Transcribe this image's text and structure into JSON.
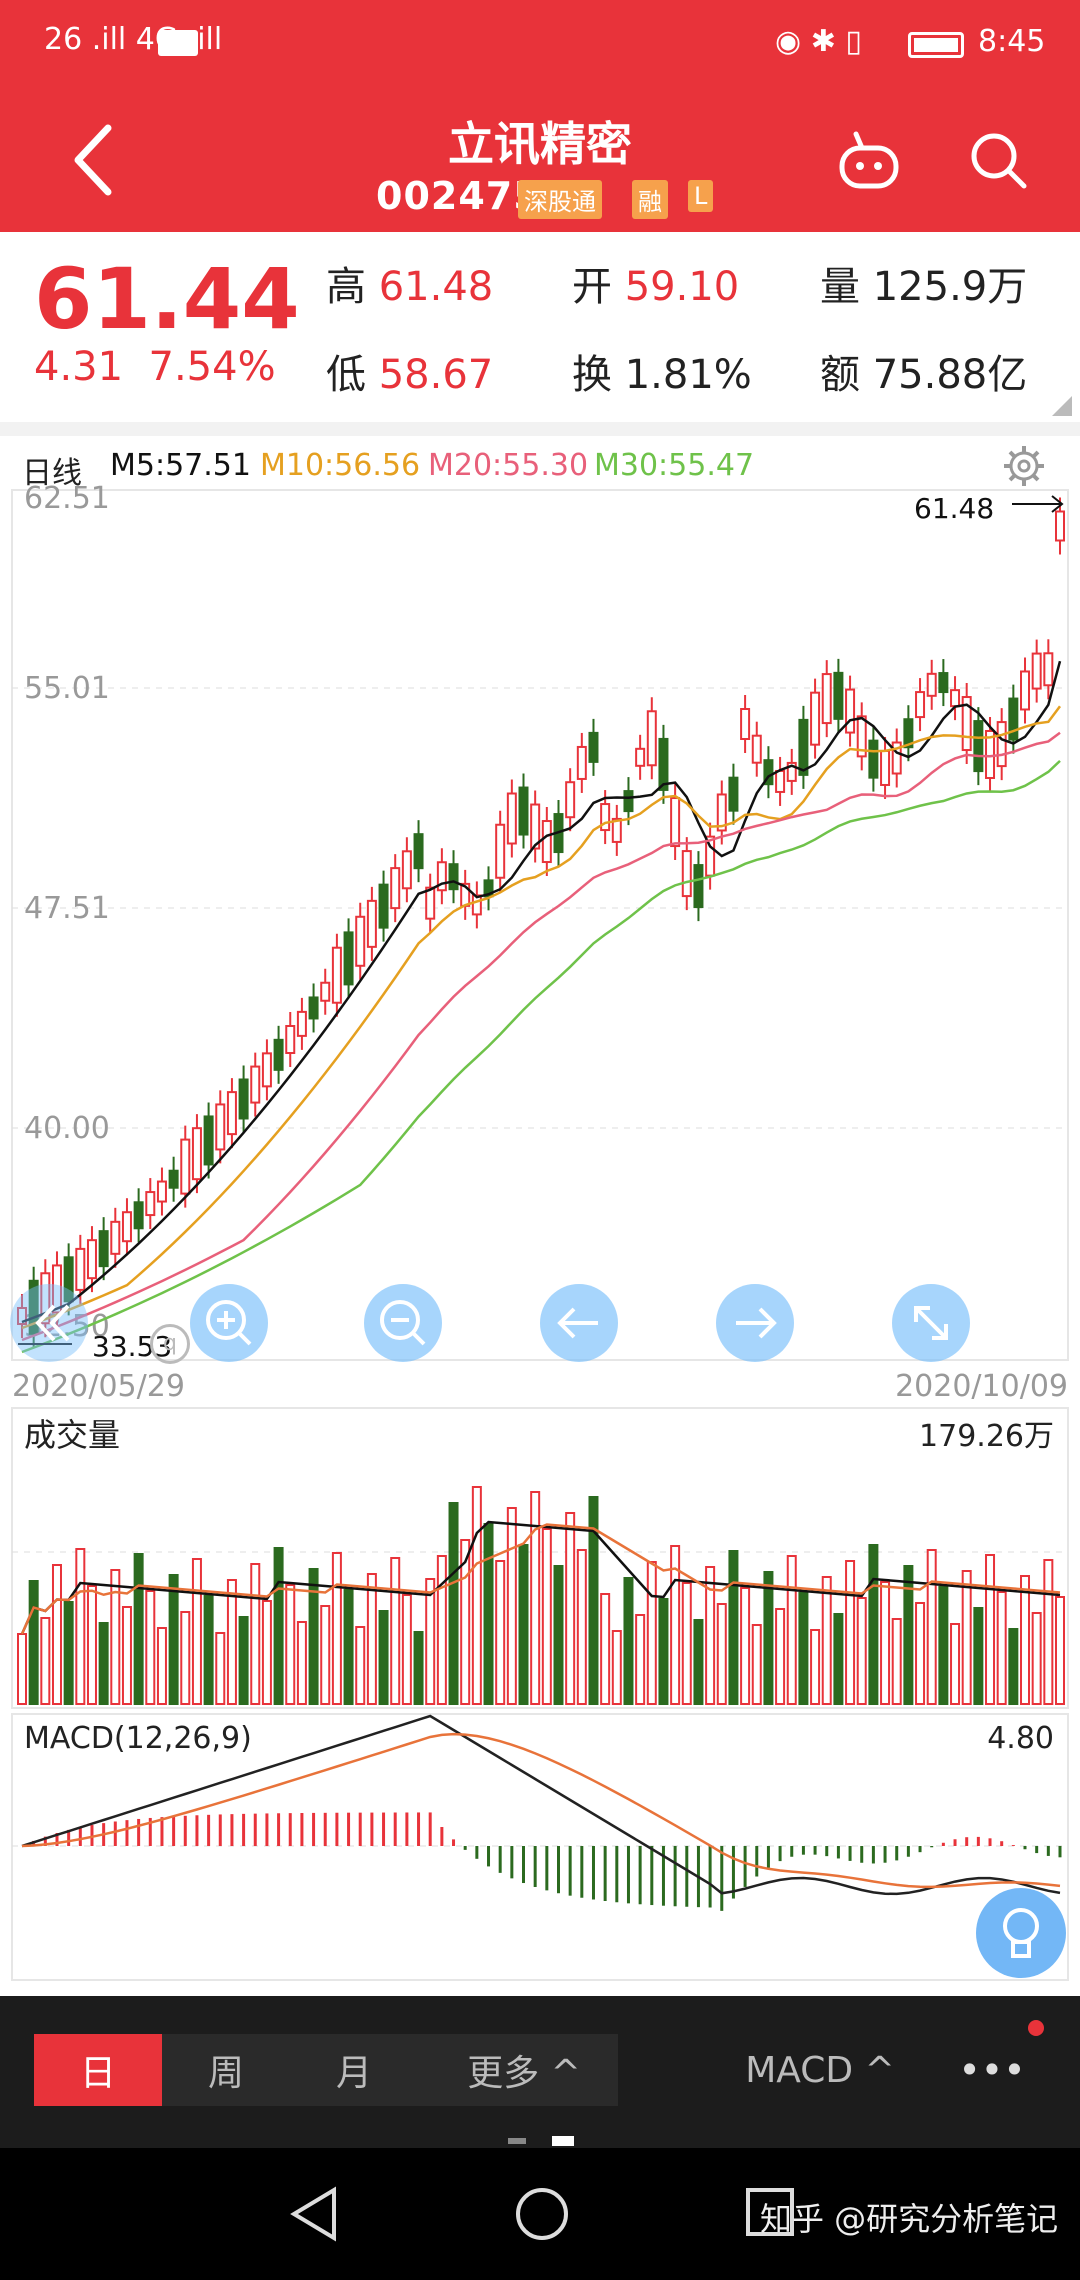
{
  "status": {
    "left": "26 .ill 4G .ill",
    "time": "8:45"
  },
  "header": {
    "title": "立讯精密",
    "code": "002475",
    "tag_connect": "深股通",
    "tag_margin": "融",
    "tag_l": "L"
  },
  "quote": {
    "price": "61.44",
    "change": "4.31",
    "pct": "7.54%",
    "high_label": "高",
    "high": "61.48",
    "open_label": "开",
    "open": "59.10",
    "vol_label": "量",
    "vol": "125.9万",
    "low_label": "低",
    "low": "58.67",
    "turn_label": "换",
    "turn": "1.81%",
    "amt_label": "额",
    "amt": "75.88亿"
  },
  "chart": {
    "period": "日线",
    "m5": "M5:57.51",
    "m10": "M10:56.56",
    "m20": "M20:55.30",
    "m30": "M30:55.47",
    "y_labels": [
      "62.51",
      "55.01",
      "47.51",
      "40.00",
      "32.50"
    ],
    "high_mark": "61.48",
    "low_mark": "33.53",
    "date_start": "2020/05/29",
    "date_end": "2020/10/09",
    "volume_title": "成交量",
    "volume_max": "179.26万",
    "macd_title": "MACD(12,26,9)",
    "macd_max": "4.80",
    "colors": {
      "up": "#e8333a",
      "down": "#2b6a1f",
      "m5": "#111111",
      "m10": "#e5a020",
      "m20": "#e8607a",
      "m30": "#6fc24a"
    }
  },
  "toolbar": {
    "day": "日",
    "week": "周",
    "month": "月",
    "more": "更多 ^",
    "macd": "MACD ^",
    "dots": "•••"
  },
  "watermark": "知乎 @研究分析笔记"
}
